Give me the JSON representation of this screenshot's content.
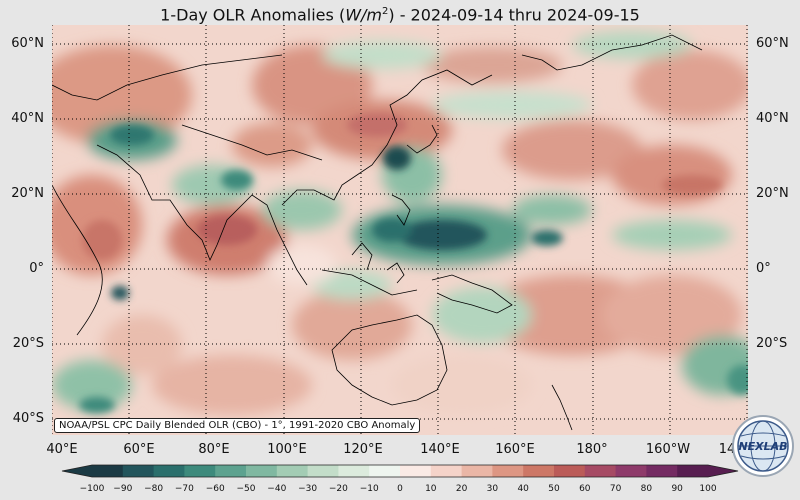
{
  "title": {
    "prefix": "1-Day OLR Anomalies (",
    "unit_base": "W/m",
    "unit_exp": "2",
    "suffix": ") - 2024-09-14 thru 2024-09-15"
  },
  "latitude_labels": [
    "60°N",
    "40°N",
    "20°N",
    "0°",
    "20°S",
    "40°S"
  ],
  "longitude_labels": [
    "40°E",
    "60°E",
    "80°E",
    "100°E",
    "120°E",
    "140°E",
    "160°E",
    "180°",
    "160°W",
    "14"
  ],
  "source_note": "NOAA/PSL CPC Daily Blended OLR (CBO) - 1°, 1991-2020 CBO Anomaly",
  "colorbar": {
    "ticks": [
      "−100",
      "−90",
      "−80",
      "−70",
      "−60",
      "−50",
      "−40",
      "−30",
      "−20",
      "−10",
      "0",
      "10",
      "20",
      "30",
      "40",
      "50",
      "60",
      "70",
      "80",
      "90",
      "100"
    ],
    "colors_negative": [
      "#1b3a44",
      "#22555c",
      "#2a6f6c",
      "#3d8a7c",
      "#5da28f",
      "#80b8a1",
      "#a3ccb4",
      "#c3ddc9",
      "#dcebdd",
      "#eef5ef"
    ],
    "colors_positive": [
      "#faeae5",
      "#f5d3c9",
      "#eab6a6",
      "#dd9683",
      "#cd7766",
      "#bb5b58",
      "#a64a64",
      "#8e3a6a",
      "#742b62",
      "#571d50"
    ]
  },
  "map": {
    "lon_range": [
      40,
      220
    ],
    "lat_range": [
      -40,
      65
    ],
    "dominant_anomaly": "positive (warm) over most areas; strong negative bands over western Pacific 5-20°N"
  },
  "logo": {
    "text": "NEXLAB"
  }
}
